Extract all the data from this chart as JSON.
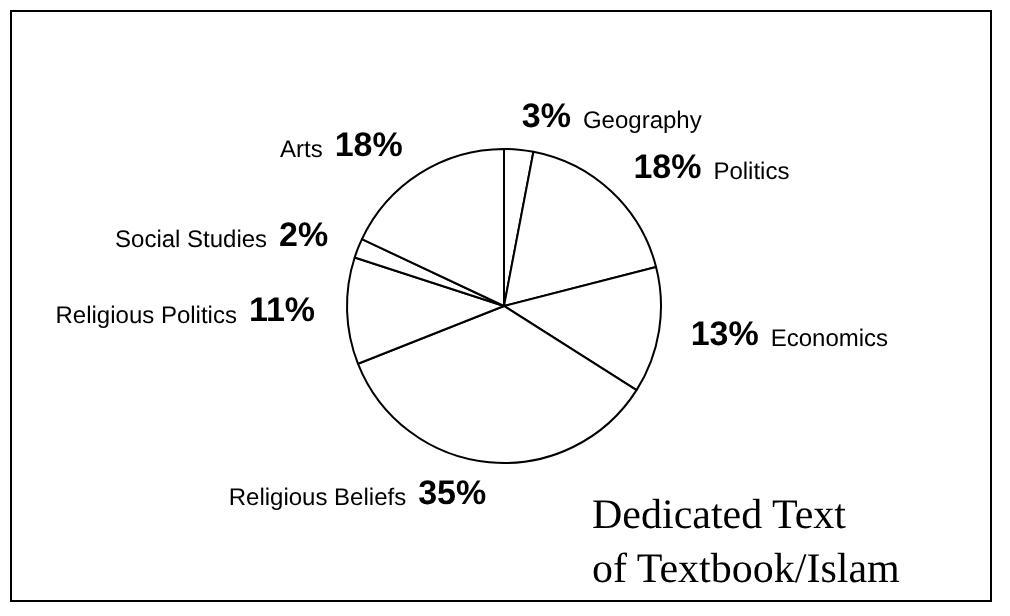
{
  "chart_data": {
    "type": "pie",
    "title": "Dedicated Text\nof Textbook/Islam",
    "categories": [
      "Geography",
      "Politics",
      "Economics",
      "Religious Beliefs",
      "Religious Politics",
      "Social Studies",
      "Arts"
    ],
    "values": [
      3,
      18,
      13,
      35,
      11,
      2,
      18
    ],
    "value_labels": [
      "3%",
      "18%",
      "13%",
      "35%",
      "11%",
      "2%",
      "18%"
    ],
    "colors": [
      "#ffffff",
      "#ffffff",
      "#ffffff",
      "#ffffff",
      "#ffffff",
      "#ffffff",
      "#ffffff"
    ],
    "legend": false
  }
}
